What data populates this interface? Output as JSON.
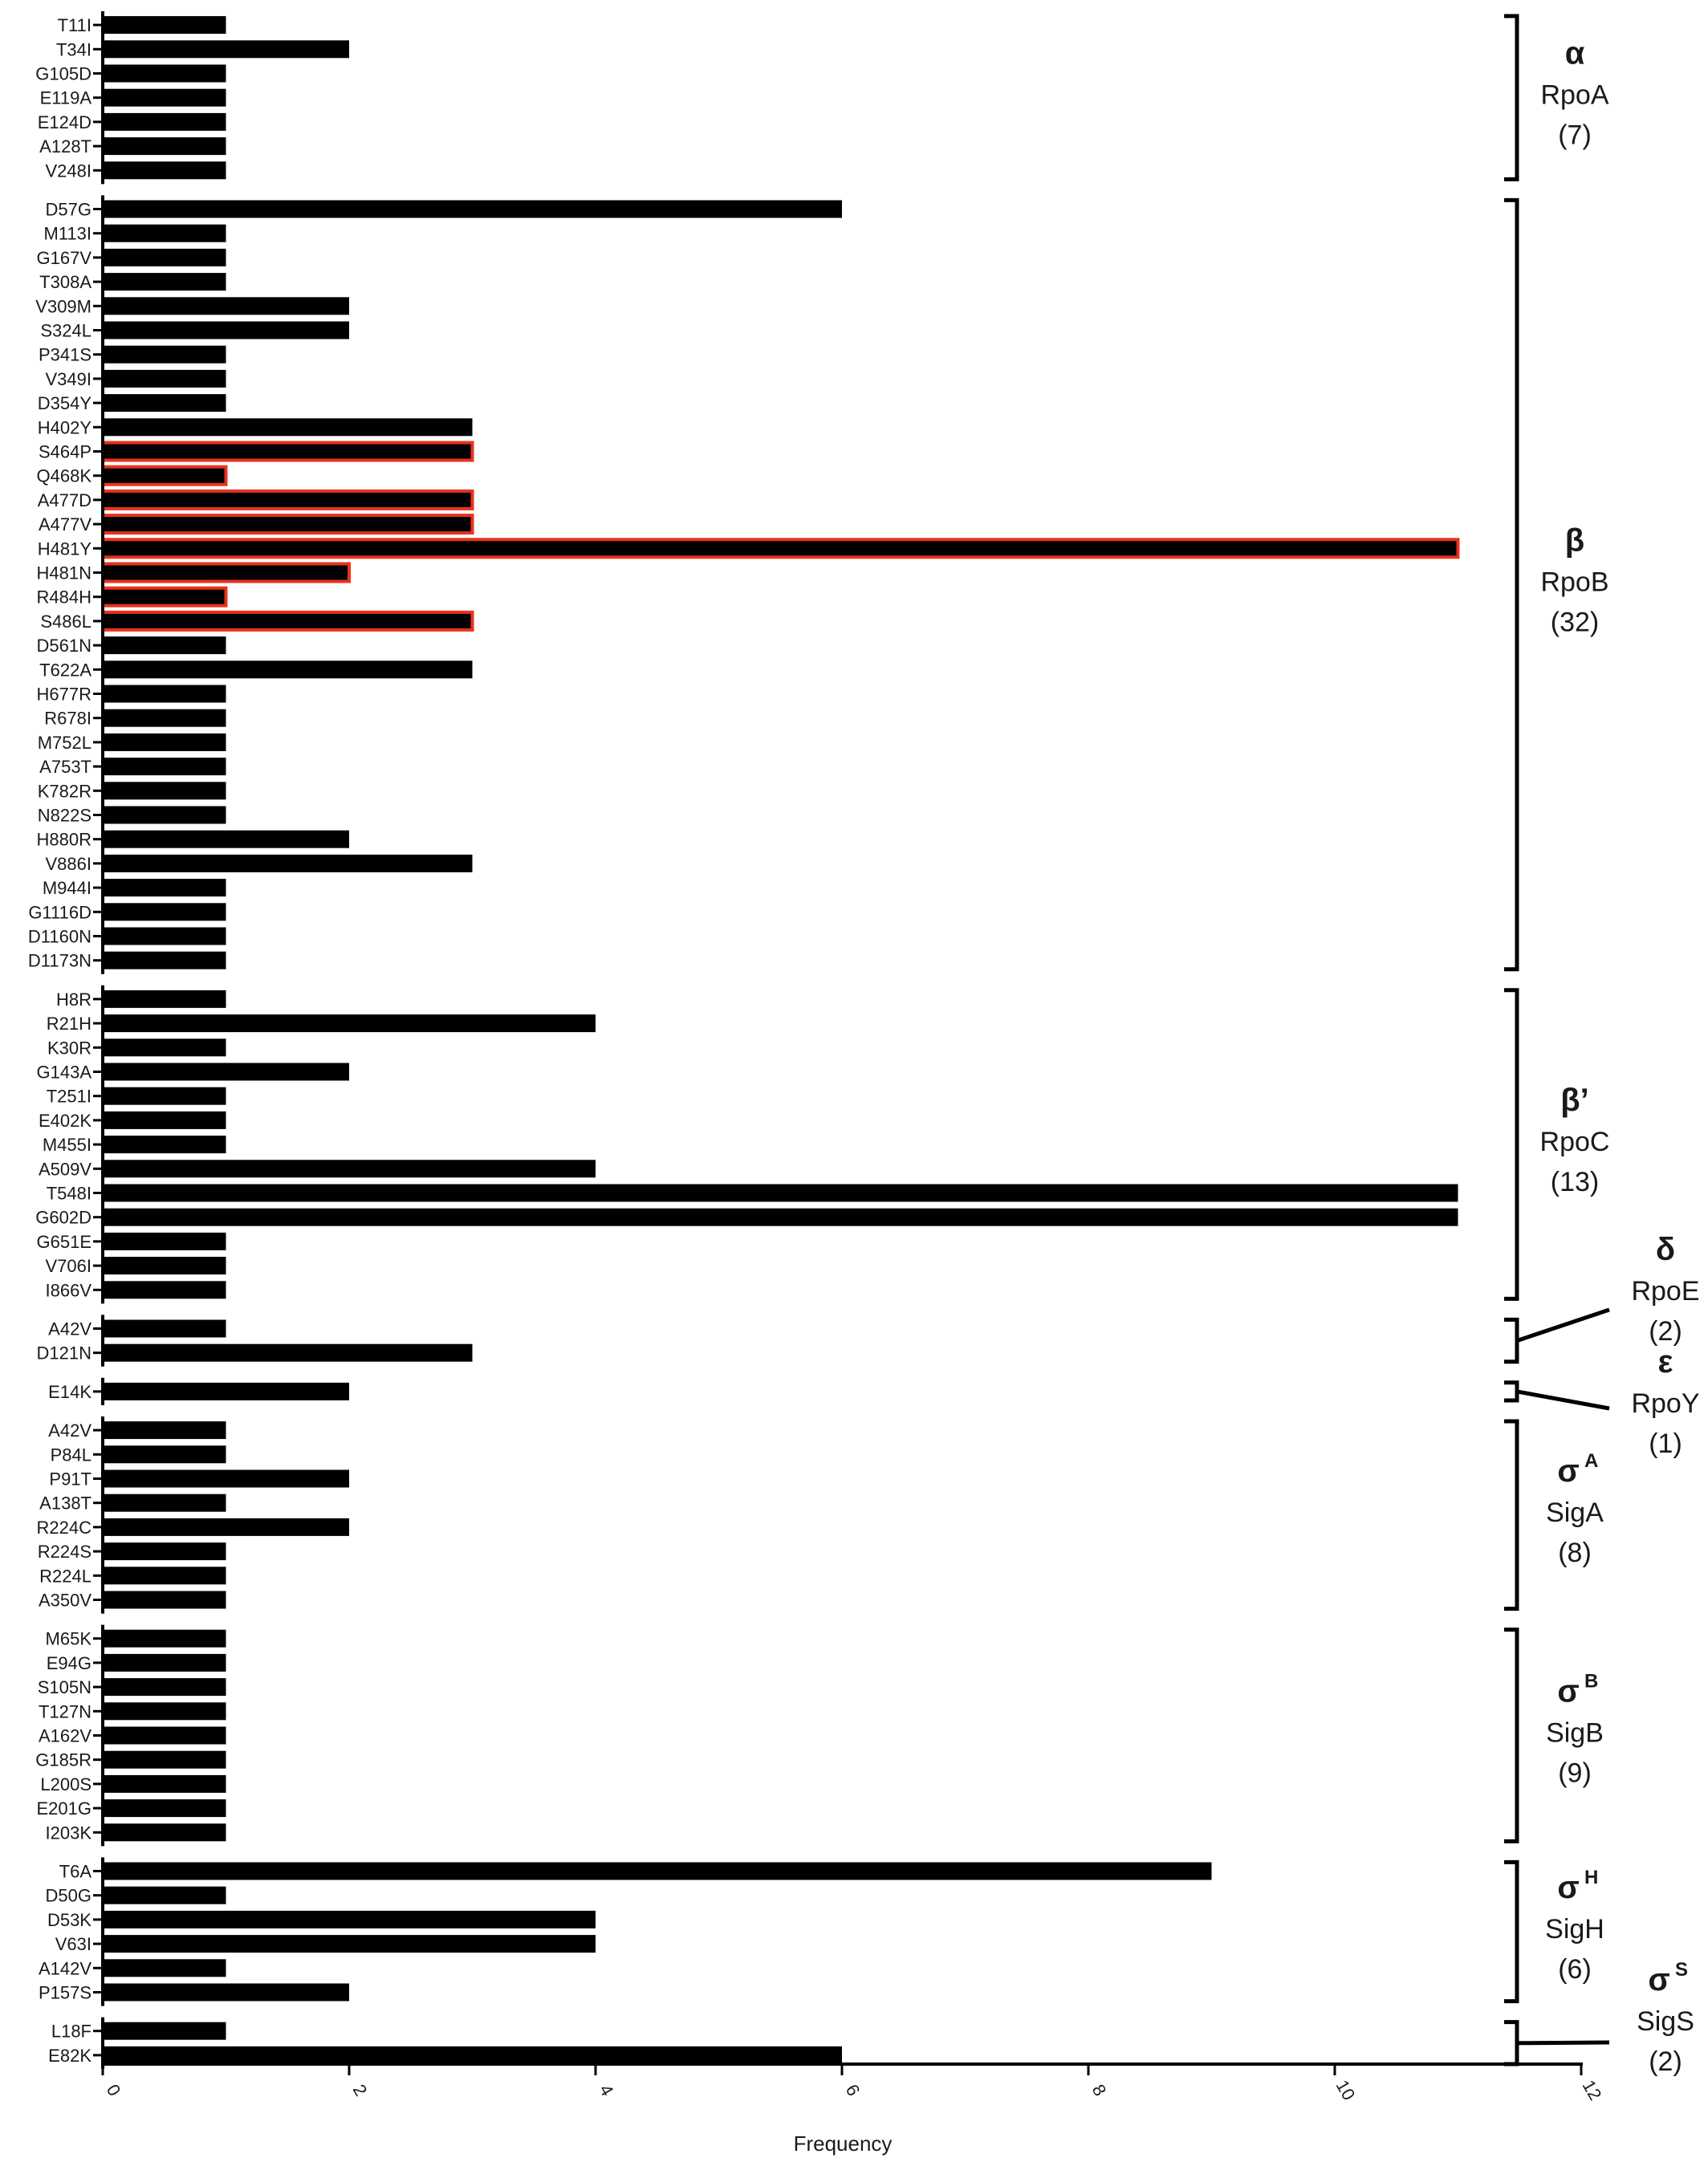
{
  "chart_data": {
    "type": "bar",
    "orientation": "horizontal",
    "xlabel": "Frequency",
    "ylabel": "",
    "xlim": [
      0,
      12
    ],
    "xticks": [
      0,
      2,
      4,
      6,
      8,
      10,
      12
    ],
    "grid": false,
    "legend": "none",
    "colors": {
      "bar": "#000000",
      "highlight_outline": "#e8321e",
      "axis": "#000000"
    },
    "groups": [
      {
        "id": "rpoA",
        "symbol": "α",
        "superscript": "",
        "gene": "RpoA",
        "count": "(7)",
        "categories": [
          "T11I",
          "T34I",
          "G105D",
          "E119A",
          "E124D",
          "A128T",
          "V248I"
        ],
        "values": [
          1,
          2,
          1,
          1,
          1,
          1,
          1
        ],
        "highlighted": []
      },
      {
        "id": "rpoB",
        "symbol": "β",
        "superscript": "",
        "gene": "RpoB",
        "count": "(32)",
        "categories": [
          "D57G",
          "M113I",
          "G167V",
          "T308A",
          "V309M",
          "S324L",
          "P341S",
          "V349I",
          "D354Y",
          "H402Y",
          "S464P",
          "Q468K",
          "A477D",
          "A477V",
          "H481Y",
          "H481N",
          "R484H",
          "S486L",
          "D561N",
          "T622A",
          "H677R",
          "R678I",
          "M752L",
          "A753T",
          "K782R",
          "N822S",
          "H880R",
          "V886I",
          "M944I",
          "G1116D",
          "D1160N",
          "D1173N"
        ],
        "values": [
          6,
          1,
          1,
          1,
          2,
          2,
          1,
          1,
          1,
          3,
          3,
          1,
          3,
          3,
          11,
          2,
          1,
          3,
          1,
          3,
          1,
          1,
          1,
          1,
          1,
          1,
          2,
          3,
          1,
          1,
          1,
          1
        ],
        "highlighted": [
          "S464P",
          "Q468K",
          "A477D",
          "A477V",
          "H481Y",
          "H481N",
          "R484H",
          "S486L"
        ]
      },
      {
        "id": "rpoC",
        "symbol": "β’",
        "superscript": "",
        "gene": "RpoC",
        "count": "(13)",
        "categories": [
          "H8R",
          "R21H",
          "K30R",
          "G143A",
          "T251I",
          "E402K",
          "M455I",
          "A509V",
          "T548I",
          "G602D",
          "G651E",
          "V706I",
          "I866V"
        ],
        "values": [
          1,
          4,
          1,
          2,
          1,
          1,
          1,
          4,
          11,
          11,
          1,
          1,
          1
        ],
        "highlighted": []
      },
      {
        "id": "rpoE",
        "symbol": "δ",
        "superscript": "",
        "gene": "RpoE",
        "count": "(2)",
        "categories": [
          "A42V",
          "D121N"
        ],
        "values": [
          1,
          3
        ],
        "highlighted": []
      },
      {
        "id": "rpoY",
        "symbol": "ε",
        "superscript": "",
        "gene": "RpoY",
        "count": "(1)",
        "categories": [
          "E14K"
        ],
        "values": [
          2
        ],
        "highlighted": []
      },
      {
        "id": "sigA",
        "symbol": "σ",
        "superscript": "A",
        "gene": "SigA",
        "count": "(8)",
        "categories": [
          "A42V",
          "P84L",
          "P91T",
          "A138T",
          "R224C",
          "R224S",
          "R224L",
          "A350V"
        ],
        "values": [
          1,
          1,
          2,
          1,
          2,
          1,
          1,
          1
        ],
        "highlighted": []
      },
      {
        "id": "sigB",
        "symbol": "σ",
        "superscript": "B",
        "gene": "SigB",
        "count": "(9)",
        "categories": [
          "M65K",
          "E94G",
          "S105N",
          "T127N",
          "A162V",
          "G185R",
          "L200S",
          "E201G",
          "I203K"
        ],
        "values": [
          1,
          1,
          1,
          1,
          1,
          1,
          1,
          1,
          1
        ],
        "highlighted": []
      },
      {
        "id": "sigH",
        "symbol": "σ",
        "superscript": "H",
        "gene": "SigH",
        "count": "(6)",
        "categories": [
          "T6A",
          "D50G",
          "D53K",
          "V63I",
          "A142V",
          "P157S"
        ],
        "values": [
          9,
          1,
          4,
          4,
          1,
          2
        ],
        "highlighted": []
      },
      {
        "id": "sigS",
        "symbol": "σ",
        "superscript": "S",
        "gene": "SigS",
        "count": "(2)",
        "categories": [
          "L18F",
          "E82K"
        ],
        "values": [
          1,
          6
        ],
        "highlighted": []
      }
    ]
  }
}
